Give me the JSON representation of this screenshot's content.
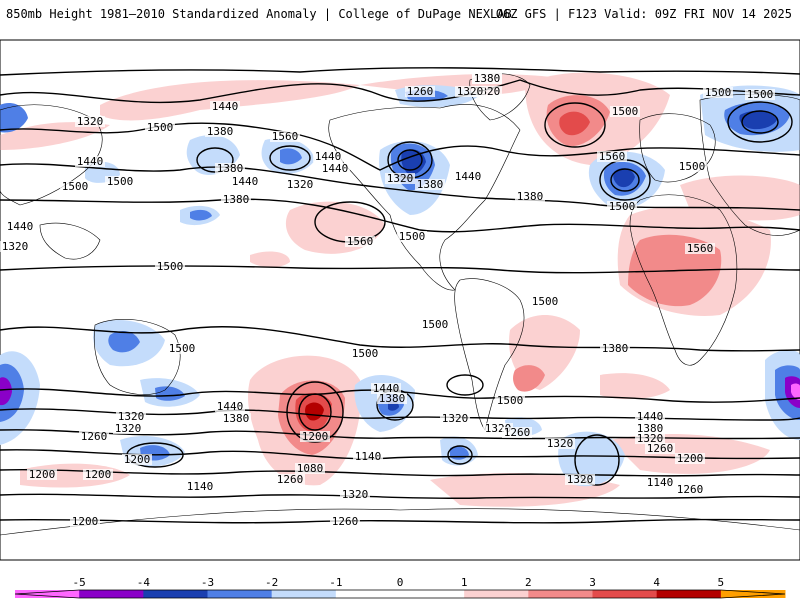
{
  "header": {
    "left": "850mb Height 1981–2010 Standardized Anomaly | College of DuPage NEXLAB",
    "right": "06Z GFS | F123 Valid: 09Z FRI NOV 14 2025"
  },
  "colors": {
    "neg5": "#ff66ff",
    "neg4": "#8a00c8",
    "neg3": "#1a3fb0",
    "neg2": "#4f7fe6",
    "neg1": "#c4dcfb",
    "pos1": "#fbd1d1",
    "pos2": "#f28a8a",
    "pos3": "#e34b4b",
    "pos4": "#b30000",
    "pos5": "#ff9f00",
    "contour": "#000000",
    "border": "#000000"
  },
  "colorbar": {
    "ticks": [
      "-5",
      "-4",
      "-3",
      "-2",
      "-1",
      "0",
      "1",
      "2",
      "3",
      "4",
      "5"
    ]
  },
  "contour_labels": [
    "1380",
    "1320",
    "1260",
    "1320",
    "1440",
    "1320",
    "1380",
    "1500",
    "1560",
    "1440",
    "1380",
    "1440",
    "1440",
    "1320",
    "1380",
    "1320",
    "1380",
    "1440",
    "1500",
    "1500",
    "1440",
    "1320",
    "1500",
    "1560",
    "1500",
    "1440",
    "1380",
    "1500",
    "1560",
    "1500",
    "1500",
    "1500",
    "1560",
    "1500",
    "1500",
    "1500",
    "1500",
    "1440",
    "1380",
    "1440",
    "1380",
    "1320",
    "1320",
    "1260",
    "1200",
    "1140",
    "1200",
    "1200",
    "1260",
    "1140",
    "1320",
    "1260",
    "1200",
    "1080",
    "1200",
    "1320",
    "1320",
    "1260",
    "1320",
    "1500",
    "1440",
    "1380",
    "1320",
    "1260",
    "1200",
    "1140",
    "1260",
    "1320",
    "1380",
    "1500",
    "1380"
  ]
}
